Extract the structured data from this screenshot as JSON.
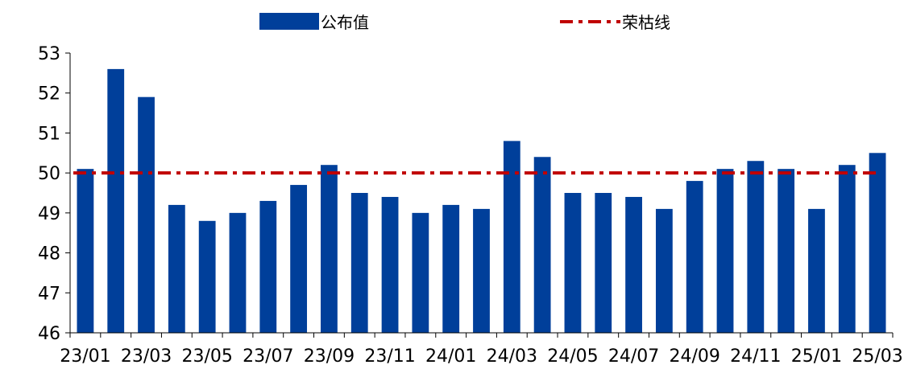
{
  "chart_data": {
    "type": "bar",
    "categories": [
      "23/01",
      "23/02",
      "23/03",
      "23/04",
      "23/05",
      "23/06",
      "23/07",
      "23/08",
      "23/09",
      "23/10",
      "23/11",
      "23/12",
      "24/01",
      "24/02",
      "24/03",
      "24/04",
      "24/05",
      "24/06",
      "24/07",
      "24/08",
      "24/09",
      "24/10",
      "24/11",
      "24/12",
      "25/01",
      "25/02",
      "25/03"
    ],
    "x_tick_labels": [
      "23/01",
      "23/03",
      "23/05",
      "23/07",
      "23/09",
      "23/11",
      "24/01",
      "24/03",
      "24/05",
      "24/07",
      "24/09",
      "24/11",
      "25/01",
      "25/03"
    ],
    "series": [
      {
        "name": "公布值",
        "kind": "bar",
        "color": "#003f9a",
        "values": [
          50.1,
          52.6,
          51.9,
          49.2,
          48.8,
          49.0,
          49.3,
          49.7,
          50.2,
          49.5,
          49.4,
          49.0,
          49.2,
          49.1,
          50.8,
          50.4,
          49.5,
          49.5,
          49.4,
          49.1,
          49.8,
          50.1,
          50.3,
          50.1,
          49.1,
          50.2,
          50.5
        ]
      },
      {
        "name": "荣枯线",
        "kind": "line",
        "style": "dash-dot",
        "color": "#c00000",
        "value": 50
      }
    ],
    "y_ticks": [
      "46",
      "47",
      "48",
      "49",
      "50",
      "51",
      "52",
      "53"
    ],
    "ylim": [
      46,
      53
    ],
    "grid": false,
    "legend_position": "top"
  }
}
